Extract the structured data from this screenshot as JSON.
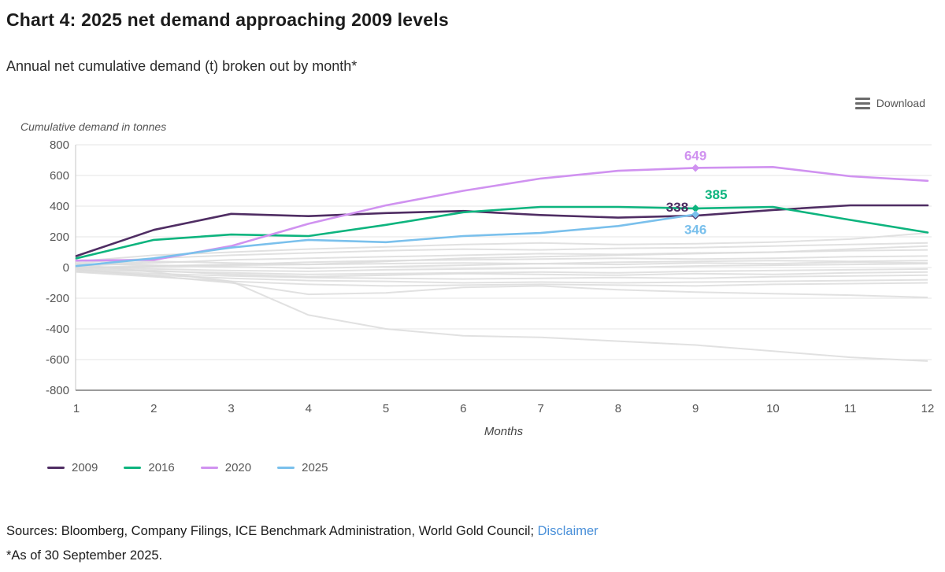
{
  "page": {
    "title": "Chart 4: 2025 net demand approaching 2009 levels",
    "subtitle": "Annual net cumulative demand (t) broken out by month*"
  },
  "toolbar": {
    "download_label": "Download",
    "menu_icon": "hamburger-icon"
  },
  "chart_data": {
    "type": "line",
    "title": "Chart 4: 2025 net demand approaching 2009 levels",
    "ylabel": "Cumulative demand in tonnes",
    "xlabel": "Months",
    "ylim": [
      -800,
      800
    ],
    "ytick_step": 200,
    "grid": true,
    "legend_position": "bottom-left",
    "x": [
      1,
      2,
      3,
      4,
      5,
      6,
      7,
      8,
      9,
      10,
      11,
      12
    ],
    "series": [
      {
        "name": "2009",
        "color": "#4f2d63",
        "values": [
          75,
          245,
          350,
          335,
          355,
          368,
          342,
          325,
          338,
          375,
          405,
          405
        ],
        "marker_month": 9
      },
      {
        "name": "2016",
        "color": "#0db47e",
        "values": [
          60,
          180,
          215,
          205,
          278,
          360,
          395,
          395,
          385,
          395,
          310,
          228
        ],
        "marker_month": 9
      },
      {
        "name": "2020",
        "color": "#d092f0",
        "values": [
          45,
          50,
          140,
          285,
          405,
          500,
          580,
          630,
          649,
          655,
          595,
          565
        ],
        "marker_month": 9
      },
      {
        "name": "2025",
        "color": "#7ac0ec",
        "values": [
          10,
          60,
          130,
          180,
          165,
          205,
          225,
          270,
          346
        ],
        "marker_month": 9
      }
    ],
    "annotations": [
      {
        "text": "649",
        "series": "2020",
        "month": 9,
        "value": 649,
        "position": "above"
      },
      {
        "text": "338",
        "series": "2009",
        "month": 9,
        "value": 338,
        "position": "left"
      },
      {
        "text": "385",
        "series": "2016",
        "month": 9,
        "value": 385,
        "position": "right-above"
      },
      {
        "text": "346",
        "series": "2025",
        "month": 9,
        "value": 346,
        "position": "below"
      }
    ],
    "background_series": [
      [
        20,
        -30,
        -90,
        -310,
        -400,
        -445,
        -455,
        -480,
        -505,
        -545,
        -585,
        -610
      ],
      [
        -10,
        -55,
        -100,
        -175,
        -165,
        -130,
        -120,
        -145,
        -160,
        -170,
        -180,
        -195
      ],
      [
        40,
        80,
        100,
        120,
        135,
        150,
        160,
        150,
        155,
        165,
        185,
        225
      ],
      [
        30,
        60,
        80,
        95,
        110,
        120,
        115,
        125,
        130,
        140,
        150,
        160
      ],
      [
        10,
        30,
        50,
        60,
        70,
        80,
        90,
        85,
        95,
        100,
        110,
        115
      ],
      [
        0,
        10,
        20,
        35,
        45,
        50,
        55,
        60,
        55,
        60,
        70,
        75
      ],
      [
        -5,
        5,
        15,
        20,
        25,
        30,
        25,
        35,
        40,
        45,
        40,
        45
      ],
      [
        5,
        -10,
        -20,
        -25,
        -15,
        -10,
        -5,
        0,
        10,
        15,
        20,
        25
      ],
      [
        -15,
        -25,
        -35,
        -45,
        -40,
        -35,
        -30,
        -35,
        -25,
        -20,
        -15,
        -10
      ],
      [
        -20,
        -40,
        -55,
        -65,
        -70,
        -75,
        -70,
        -65,
        -70,
        -60,
        -55,
        -50
      ],
      [
        -25,
        -50,
        -70,
        -85,
        -90,
        -100,
        -95,
        -100,
        -95,
        -90,
        -85,
        -80
      ],
      [
        -30,
        -60,
        -90,
        -110,
        -120,
        -115,
        -110,
        -115,
        -120,
        -110,
        -105,
        -100
      ],
      [
        15,
        40,
        30,
        20,
        40,
        60,
        70,
        80,
        90,
        100,
        120,
        140
      ],
      [
        -5,
        -20,
        -45,
        -60,
        -50,
        -40,
        -45,
        -50,
        -40,
        -45,
        -35,
        -30
      ],
      [
        25,
        15,
        5,
        -5,
        5,
        15,
        25,
        20,
        30,
        25,
        35,
        30
      ]
    ],
    "colors": {
      "grid": "#e6e6e6",
      "axis_left": "#c5c5c5",
      "axis_bottom": "#9b9b9b",
      "background_lines": "#dcdcdc",
      "tick_label": "#555555"
    }
  },
  "legend": {
    "items": [
      {
        "label": "2009",
        "color": "#4f2d63"
      },
      {
        "label": "2016",
        "color": "#0db47e"
      },
      {
        "label": "2020",
        "color": "#d092f0"
      },
      {
        "label": "2025",
        "color": "#7ac0ec"
      }
    ]
  },
  "footer": {
    "sources_text": "Sources: Bloomberg, Company Filings, ICE Benchmark Administration, World Gold Council; ",
    "disclaimer_label": "Disclaimer",
    "footnote": "*As of 30 September 2025."
  }
}
